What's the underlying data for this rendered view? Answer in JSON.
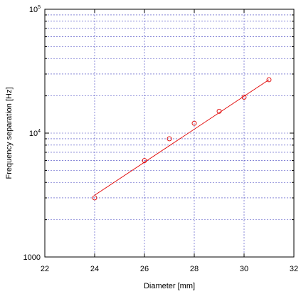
{
  "chart_data": {
    "type": "scatter",
    "title": "",
    "xlabel": "Diameter [mm]",
    "ylabel": "Frequency separation [Hz]",
    "xlim": [
      22,
      32
    ],
    "ylim": [
      1000,
      100000
    ],
    "yscale": "log",
    "grid": true,
    "x_ticks": [
      22,
      24,
      26,
      28,
      30,
      32
    ],
    "y_ticks": [
      {
        "value": 1000,
        "label": "1000"
      },
      {
        "value": 10000,
        "base": "10",
        "exp": "4"
      },
      {
        "value": 100000,
        "base": "10",
        "exp": "5"
      }
    ],
    "series": [
      {
        "type": "scatter",
        "marker": "circle-open",
        "color": "#e00000",
        "x": [
          24,
          26,
          27,
          28,
          29,
          30,
          31
        ],
        "y": [
          3000,
          6000,
          9000,
          12000,
          15000,
          19500,
          27000
        ]
      },
      {
        "type": "line",
        "color": "#e00000",
        "x": [
          24,
          31
        ],
        "y": [
          3150,
          27000
        ]
      }
    ],
    "grid_color": "#4040c0"
  }
}
